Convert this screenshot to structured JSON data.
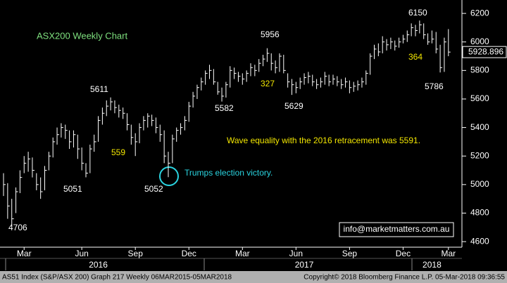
{
  "chart_data": {
    "type": "ohlc",
    "title": "ASX200 Weekly Chart",
    "color": "#ffffff",
    "high": [
      5080,
      5010,
      4900,
      4980,
      5100,
      5200,
      5230,
      5190,
      5080,
      5050,
      5130,
      5230,
      5330,
      5400,
      5430,
      5420,
      5380,
      5380,
      5350,
      5260,
      5150,
      5280,
      5350,
      5480,
      5540,
      5590,
      5611,
      5590,
      5560,
      5540,
      5500,
      5420,
      5360,
      5430,
      5480,
      5500,
      5490,
      5470,
      5420,
      5380,
      5230,
      5350,
      5400,
      5430,
      5480,
      5580,
      5650,
      5700,
      5750,
      5800,
      5840,
      5810,
      5720,
      5680,
      5720,
      5830,
      5820,
      5790,
      5780,
      5800,
      5850,
      5840,
      5880,
      5910,
      5956,
      5920,
      5870,
      5920,
      5910,
      5780,
      5740,
      5720,
      5750,
      5780,
      5790,
      5770,
      5740,
      5750,
      5790,
      5770,
      5770,
      5760,
      5740,
      5750,
      5730,
      5720,
      5730,
      5750,
      5800,
      5920,
      5980,
      5990,
      6040,
      6020,
      6030,
      6010,
      6030,
      6050,
      6080,
      6130,
      6120,
      6150,
      6130,
      6060,
      6080,
      6070,
      5980,
      6030,
      6090
    ],
    "low": [
      4920,
      4760,
      4706,
      4800,
      4940,
      5080,
      5090,
      5050,
      4960,
      4900,
      4960,
      5100,
      5190,
      5280,
      5330,
      5320,
      5250,
      5260,
      5180,
      5100,
      5051,
      5080,
      5230,
      5300,
      5420,
      5480,
      5520,
      5500,
      5470,
      5460,
      5380,
      5280,
      5200,
      5290,
      5380,
      5400,
      5410,
      5360,
      5300,
      5150,
      5052,
      5150,
      5300,
      5350,
      5380,
      5440,
      5540,
      5600,
      5660,
      5700,
      5740,
      5700,
      5630,
      5582,
      5610,
      5680,
      5740,
      5720,
      5700,
      5720,
      5760,
      5760,
      5790,
      5830,
      5860,
      5800,
      5780,
      5790,
      5780,
      5680,
      5629,
      5640,
      5670,
      5700,
      5710,
      5690,
      5670,
      5680,
      5700,
      5690,
      5700,
      5690,
      5670,
      5680,
      5640,
      5650,
      5660,
      5680,
      5700,
      5770,
      5880,
      5900,
      5920,
      5940,
      5950,
      5940,
      5960,
      5990,
      6000,
      6040,
      6040,
      6060,
      6020,
      5980,
      5990,
      5920,
      5786,
      5790,
      5900
    ],
    "close": [
      5000,
      4850,
      4760,
      4950,
      5050,
      5150,
      5180,
      5100,
      5000,
      4950,
      5100,
      5200,
      5300,
      5350,
      5400,
      5380,
      5300,
      5350,
      5250,
      5150,
      5080,
      5250,
      5300,
      5450,
      5500,
      5550,
      5580,
      5540,
      5520,
      5500,
      5420,
      5330,
      5300,
      5400,
      5450,
      5480,
      5450,
      5400,
      5350,
      5200,
      5150,
      5320,
      5380,
      5400,
      5450,
      5550,
      5620,
      5680,
      5720,
      5780,
      5800,
      5720,
      5650,
      5620,
      5700,
      5800,
      5780,
      5760,
      5740,
      5780,
      5820,
      5800,
      5850,
      5880,
      5920,
      5850,
      5820,
      5900,
      5800,
      5720,
      5700,
      5680,
      5720,
      5750,
      5760,
      5720,
      5700,
      5720,
      5760,
      5720,
      5740,
      5720,
      5700,
      5720,
      5680,
      5690,
      5700,
      5720,
      5780,
      5900,
      5950,
      5930,
      6000,
      5980,
      6000,
      5970,
      6000,
      6020,
      6050,
      6100,
      6080,
      6120,
      6050,
      6000,
      6020,
      5950,
      5820,
      6000,
      5928.896
    ],
    "ylim": [
      4561,
      6294
    ],
    "yticks": [
      4600,
      4800,
      5000,
      5200,
      5400,
      5600,
      5800,
      6000,
      6200
    ],
    "xticks": [
      {
        "value": 5,
        "label": "Mar"
      },
      {
        "value": 19,
        "label": "Jun"
      },
      {
        "value": 32,
        "label": "Sep"
      },
      {
        "value": 45,
        "label": "Dec"
      },
      {
        "value": 58,
        "label": "Mar"
      },
      {
        "value": 71,
        "label": "Jun"
      },
      {
        "value": 84,
        "label": "Sep"
      },
      {
        "value": 97,
        "label": "Dec"
      },
      {
        "value": 108,
        "label": "Mar"
      }
    ],
    "year_ticks": [
      {
        "value": 23,
        "label": "2016"
      },
      {
        "value": 73,
        "label": "2017"
      },
      {
        "value": 104,
        "label": "2018"
      }
    ],
    "last_price": 5928.896,
    "annotations": [
      "4706",
      "5051",
      "5611",
      "559",
      "5052",
      "5582",
      "5956",
      "327",
      "5629",
      "6150",
      "364",
      "5786",
      "Wave equality with the 2016 retracement was 5591.",
      "Trumps election victory."
    ],
    "contact": "info@marketmatters.com.au",
    "footer": {
      "left": "AS51 Index (S&P/ASX 200) Graph 217  Weekly 06MAR2015-05MAR2018",
      "right": "Copyright© 2018 Bloomberg Finance L.P.   05-Mar-2018 09:36:55"
    }
  }
}
